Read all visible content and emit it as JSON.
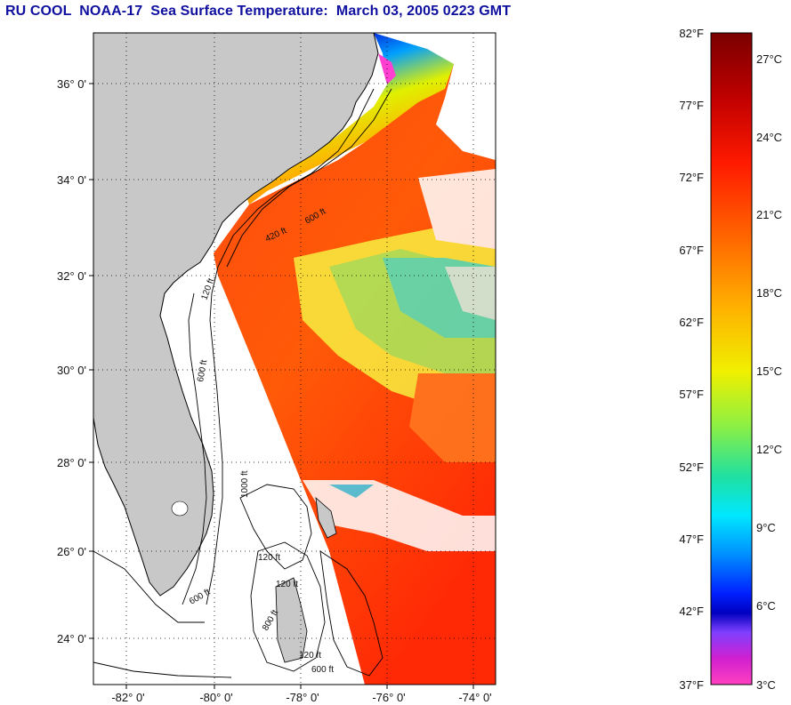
{
  "title": "RU COOL  NOAA-17  Sea Surface Temperature:  March 03, 2005 0223 GMT",
  "map": {
    "lat_labels": [
      "36° 0'",
      "34° 0'",
      "32° 0'",
      "30° 0'",
      "28° 0'",
      "26° 0'",
      "24° 0'"
    ],
    "lon_labels": [
      "-82° 0'",
      "-80° 0'",
      "-78° 0'",
      "-76° 0'",
      "-74° 0'"
    ],
    "contour_labels": [
      "120 ft",
      "600 ft",
      "420 ft",
      "600 ft",
      "600 ft",
      "120 ft",
      "1000 ft",
      "120 ft",
      "800 ft",
      "120 ft",
      "600 ft"
    ],
    "colors": {
      "land": "#c8c8c8",
      "no_data": "#ffffff",
      "border": "#000000"
    }
  },
  "colorbar": {
    "fahrenheit_labels": [
      "82°F",
      "77°F",
      "72°F",
      "67°F",
      "62°F",
      "57°F",
      "52°F",
      "47°F",
      "42°F",
      "37°F"
    ],
    "celsius_labels": [
      "27°C",
      "24°C",
      "21°C",
      "18°C",
      "15°C",
      "12°C",
      "9°C",
      "6°C",
      "3°C"
    ],
    "gradient_colors": [
      "#7a0000",
      "#c00000",
      "#ff1a00",
      "#ff6a00",
      "#ffb000",
      "#f0f000",
      "#90f040",
      "#20e0a0",
      "#00e8ff",
      "#0090ff",
      "#0020ff",
      "#0000c0",
      "#8040ff",
      "#d020d0",
      "#ff40c0"
    ]
  }
}
